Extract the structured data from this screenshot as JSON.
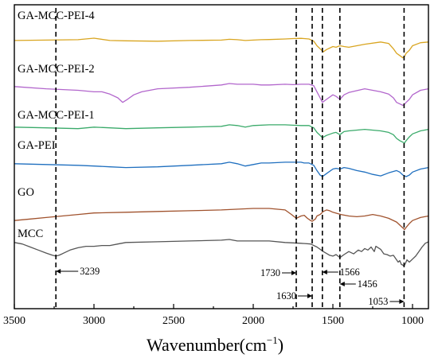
{
  "chart_data": {
    "type": "line",
    "xlabel": "Wavenumber(cm",
    "xlabel_sup": "−1",
    "xlabel_tail": ")",
    "xlim": [
      3500,
      900
    ],
    "x_reversed": true,
    "xticks": [
      3500,
      3000,
      2500,
      2000,
      1500,
      1000
    ],
    "y_axis": "none",
    "grid": false,
    "series": [
      {
        "name": "GA-MCC-PEI-4",
        "color": "#d9a520",
        "x": [
          3500,
          3300,
          3100,
          3000,
          2900,
          2800,
          2600,
          2400,
          2200,
          2150,
          2100,
          2050,
          2000,
          1950,
          1900,
          1800,
          1750,
          1700,
          1680,
          1650,
          1620,
          1600,
          1580,
          1560,
          1540,
          1500,
          1480,
          1456,
          1430,
          1400,
          1300,
          1200,
          1150,
          1120,
          1100,
          1080,
          1060,
          1050,
          1040,
          1020,
          1000,
          950,
          900
        ],
        "y": [
          0.3,
          0.25,
          0.2,
          0.0,
          0.3,
          0.35,
          0.4,
          0.3,
          0.25,
          0.15,
          0.2,
          0.3,
          0.25,
          0.2,
          0.18,
          0.1,
          0.05,
          0.02,
          0.05,
          0.1,
          0.4,
          1.0,
          1.4,
          1.8,
          1.5,
          1.1,
          1.2,
          1.0,
          1.1,
          1.2,
          0.8,
          0.5,
          0.7,
          1.4,
          2.0,
          2.3,
          2.6,
          2.4,
          2.0,
          1.6,
          1.0,
          0.6,
          0.5
        ]
      },
      {
        "name": "GA-MCC-PEI-2",
        "color": "#b266cc",
        "x": [
          3500,
          3300,
          3100,
          3000,
          2950,
          2900,
          2850,
          2820,
          2790,
          2750,
          2700,
          2600,
          2400,
          2200,
          2150,
          2100,
          2000,
          1950,
          1900,
          1800,
          1750,
          1700,
          1650,
          1620,
          1600,
          1580,
          1566,
          1540,
          1500,
          1480,
          1456,
          1430,
          1400,
          1300,
          1200,
          1150,
          1120,
          1100,
          1080,
          1060,
          1053,
          1040,
          1020,
          1000,
          950,
          900
        ],
        "y": [
          0.5,
          0.8,
          1.0,
          1.2,
          1.2,
          1.5,
          2.0,
          2.6,
          2.2,
          1.6,
          1.2,
          0.8,
          0.6,
          0.3,
          0.1,
          0.2,
          0.2,
          0.3,
          0.3,
          0.2,
          0.25,
          0.2,
          0.2,
          0.4,
          1.2,
          2.0,
          2.6,
          2.2,
          1.6,
          1.8,
          2.2,
          1.6,
          1.3,
          0.8,
          1.2,
          1.5,
          2.0,
          2.6,
          2.8,
          3.0,
          2.9,
          2.6,
          2.2,
          1.6,
          1.0,
          0.8
        ]
      },
      {
        "name": "GA-MCC-PEI-1",
        "color": "#3aaa6a",
        "x": [
          3500,
          3300,
          3100,
          3000,
          2900,
          2800,
          2600,
          2400,
          2200,
          2150,
          2100,
          2050,
          2000,
          1900,
          1800,
          1750,
          1700,
          1650,
          1620,
          1600,
          1580,
          1566,
          1540,
          1500,
          1480,
          1456,
          1430,
          1400,
          1300,
          1200,
          1150,
          1120,
          1100,
          1080,
          1060,
          1050,
          1040,
          1020,
          1000,
          950,
          900
        ],
        "y": [
          0.5,
          0.6,
          0.7,
          0.5,
          0.6,
          0.7,
          0.6,
          0.5,
          0.4,
          0.2,
          0.3,
          0.5,
          0.3,
          0.2,
          0.2,
          0.25,
          0.3,
          0.3,
          0.6,
          1.2,
          1.6,
          1.9,
          1.6,
          1.3,
          1.2,
          1.5,
          1.1,
          1.0,
          0.8,
          1.0,
          1.2,
          1.5,
          2.0,
          2.3,
          2.5,
          2.6,
          2.3,
          1.8,
          1.4,
          1.0,
          0.8
        ]
      },
      {
        "name": "GA-PEI",
        "color": "#1f6fbf",
        "x": [
          3500,
          3300,
          3100,
          3000,
          2900,
          2800,
          2600,
          2400,
          2200,
          2150,
          2100,
          2050,
          2000,
          1950,
          1900,
          1800,
          1750,
          1700,
          1680,
          1650,
          1620,
          1600,
          1580,
          1566,
          1540,
          1500,
          1480,
          1456,
          1430,
          1400,
          1350,
          1300,
          1250,
          1200,
          1150,
          1100,
          1080,
          1060,
          1040,
          1020,
          1000,
          950,
          900
        ],
        "y": [
          0.3,
          0.4,
          0.5,
          0.6,
          0.7,
          0.8,
          0.7,
          0.5,
          0.3,
          0.1,
          0.3,
          0.6,
          0.4,
          0.2,
          0.2,
          0.1,
          0.1,
          0.1,
          0.2,
          0.2,
          0.5,
          1.2,
          1.8,
          2.0,
          1.6,
          1.0,
          0.9,
          1.0,
          0.8,
          0.9,
          1.2,
          1.4,
          1.7,
          1.9,
          1.5,
          1.2,
          1.4,
          1.8,
          2.0,
          1.8,
          1.4,
          1.0,
          0.8
        ]
      },
      {
        "name": "GO",
        "color": "#a0522d",
        "x": [
          3500,
          3400,
          3300,
          3200,
          3100,
          3000,
          2800,
          2600,
          2400,
          2200,
          2000,
          1900,
          1800,
          1760,
          1730,
          1700,
          1680,
          1660,
          1640,
          1630,
          1610,
          1600,
          1580,
          1560,
          1540,
          1520,
          1500,
          1450,
          1400,
          1350,
          1300,
          1250,
          1200,
          1150,
          1100,
          1080,
          1060,
          1050,
          1040,
          1020,
          1000,
          950,
          900
        ],
        "y": [
          1.6,
          1.4,
          1.2,
          1.0,
          0.8,
          0.6,
          0.5,
          0.4,
          0.3,
          0.2,
          0.0,
          0.0,
          0.2,
          0.8,
          1.3,
          1.0,
          0.9,
          1.3,
          1.6,
          1.7,
          1.4,
          1.0,
          0.8,
          0.4,
          0.2,
          0.3,
          0.5,
          0.8,
          1.0,
          1.1,
          1.0,
          0.8,
          1.0,
          1.3,
          1.8,
          2.2,
          2.6,
          2.8,
          2.5,
          2.0,
          1.6,
          1.2,
          1.0
        ]
      },
      {
        "name": "MCC",
        "color": "#555555",
        "x": [
          3500,
          3450,
          3400,
          3350,
          3300,
          3260,
          3239,
          3220,
          3200,
          3150,
          3100,
          3050,
          3000,
          2950,
          2900,
          2850,
          2800,
          2600,
          2400,
          2200,
          2150,
          2100,
          2000,
          1900,
          1800,
          1700,
          1640,
          1600,
          1560,
          1520,
          1500,
          1480,
          1456,
          1430,
          1400,
          1370,
          1340,
          1320,
          1300,
          1280,
          1260,
          1240,
          1230,
          1200,
          1180,
          1160,
          1140,
          1120,
          1110,
          1100,
          1090,
          1080,
          1070,
          1060,
          1053,
          1045,
          1035,
          1020,
          1000,
          980,
          960,
          940,
          920,
          900
        ],
        "y": [
          0.4,
          0.6,
          1.0,
          1.4,
          1.8,
          2.1,
          2.2,
          2.1,
          1.9,
          1.4,
          1.1,
          0.9,
          0.9,
          0.8,
          0.8,
          0.6,
          0.4,
          0.3,
          0.2,
          0.1,
          0.0,
          0.2,
          0.2,
          0.2,
          0.4,
          0.5,
          0.6,
          1.0,
          1.6,
          2.1,
          2.2,
          2.0,
          2.4,
          2.0,
          1.6,
          1.9,
          1.4,
          1.6,
          1.2,
          1.4,
          1.0,
          1.6,
          0.9,
          1.3,
          1.9,
          2.0,
          2.2,
          2.1,
          2.4,
          2.7,
          3.0,
          2.8,
          3.3,
          3.4,
          3.5,
          3.2,
          2.7,
          3.0,
          2.6,
          2.2,
          1.6,
          1.0,
          0.5,
          0.3
        ]
      }
    ],
    "reference_lines": [
      {
        "x": 3239,
        "label": "3239"
      },
      {
        "x": 1730,
        "label": "1730"
      },
      {
        "x": 1630,
        "label": "1630"
      },
      {
        "x": 1566,
        "label": "1566"
      },
      {
        "x": 1456,
        "label": "1456"
      },
      {
        "x": 1053,
        "label": "1053"
      }
    ]
  }
}
